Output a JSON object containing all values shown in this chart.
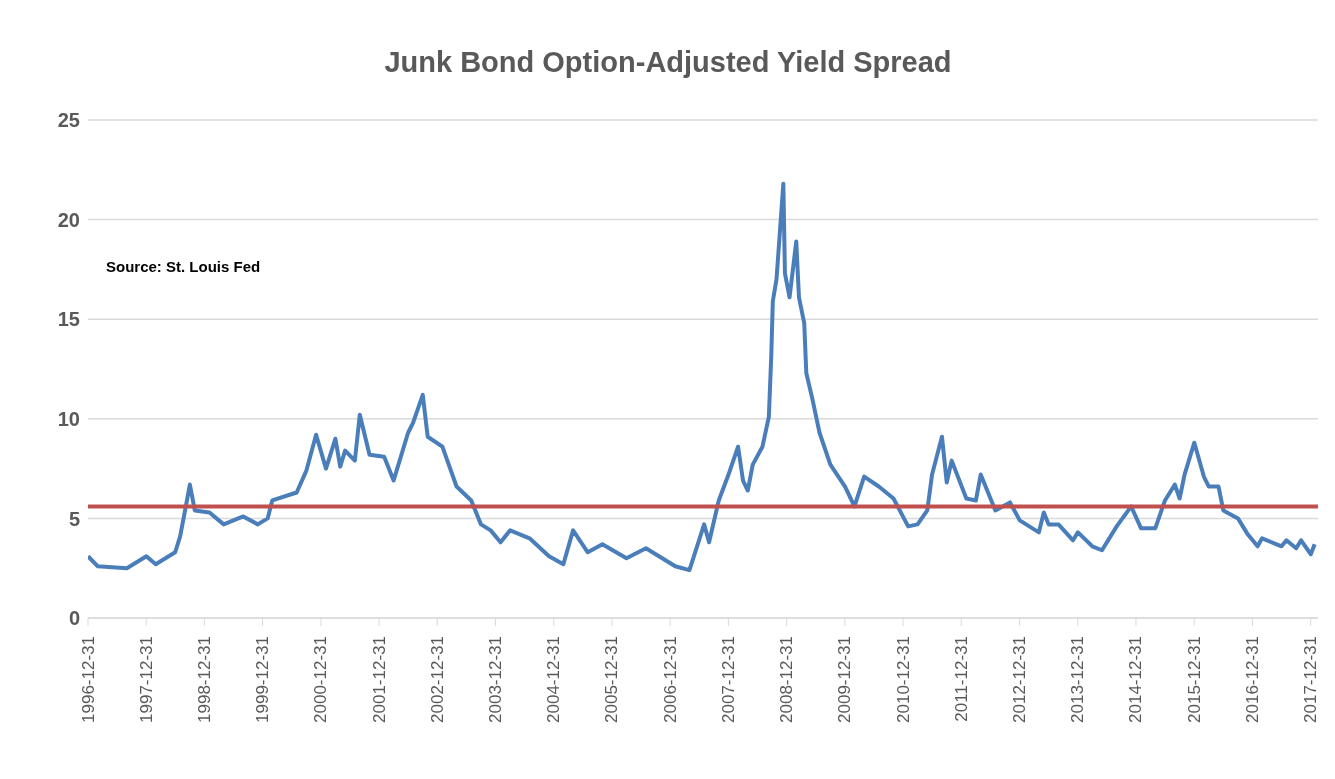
{
  "chart_data": {
    "type": "line",
    "title": "Junk Bond Option-Adjusted Yield Spread",
    "annotations": [
      "Source: St. Louis Fed"
    ],
    "x": [
      "1996-12-31",
      "1997-03",
      "1997-09",
      "1998-01",
      "1998-03",
      "1998-07",
      "1998-08",
      "1998-09",
      "1998-10",
      "1998-11",
      "1999-02",
      "1999-05",
      "1999-09",
      "1999-12",
      "2000-02",
      "2000-03",
      "2000-08",
      "2000-10",
      "2000-12",
      "2001-02",
      "2001-04",
      "2001-05",
      "2001-06",
      "2001-08",
      "2001-09",
      "2001-11",
      "2002-02",
      "2002-04",
      "2002-07",
      "2002-08",
      "2002-10",
      "2002-11",
      "2003-02",
      "2003-05",
      "2003-08",
      "2003-10",
      "2003-12",
      "2004-02",
      "2004-04",
      "2004-08",
      "2004-12",
      "2005-03",
      "2005-05",
      "2005-08",
      "2005-11",
      "2006-04",
      "2006-08",
      "2007-02",
      "2007-05",
      "2007-08",
      "2007-09",
      "2007-11",
      "2008-01",
      "2008-03",
      "2008-04",
      "2008-05",
      "2008-06",
      "2008-08",
      "2008-09-10",
      "2008-09-25",
      "2008-10-05",
      "2008-10-28",
      "2008-12-10",
      "2008-12-20",
      "2009-01-18",
      "2009-03-01",
      "2009-03-18",
      "2009-04-20",
      "2009-05-03",
      "2009-06-10",
      "2009-07-25",
      "2009-10",
      "2010-01",
      "2010-03",
      "2010-05",
      "2010-08",
      "2010-11",
      "2011-02",
      "2011-04",
      "2011-06",
      "2011-07",
      "2011-09",
      "2011-10",
      "2011-11",
      "2012-02",
      "2012-04",
      "2012-05",
      "2012-08",
      "2012-11",
      "2013-01",
      "2013-05",
      "2013-06",
      "2013-07",
      "2013-09",
      "2013-12",
      "2014-01",
      "2014-04",
      "2014-06",
      "2014-09",
      "2014-12",
      "2015-02",
      "2015-05",
      "2015-07",
      "2015-09",
      "2015-10",
      "2015-11",
      "2016-01",
      "2016-03",
      "2016-04",
      "2016-06",
      "2016-07",
      "2016-10",
      "2016-12",
      "2017-02",
      "2017-03",
      "2017-07",
      "2017-08",
      "2017-10",
      "2017-11",
      "2018-01",
      "2018-01-25"
    ],
    "values": [
      3.1,
      2.6,
      2.5,
      3.1,
      2.7,
      3.3,
      4.1,
      5.4,
      6.7,
      5.4,
      5.3,
      4.7,
      5.1,
      4.7,
      5.0,
      5.9,
      6.3,
      7.4,
      9.2,
      7.5,
      9.0,
      7.6,
      8.4,
      7.9,
      10.2,
      8.2,
      8.1,
      6.9,
      9.3,
      9.8,
      11.2,
      9.1,
      8.6,
      6.6,
      5.9,
      4.7,
      4.4,
      3.8,
      4.4,
      4.0,
      3.1,
      2.7,
      4.4,
      3.3,
      3.7,
      3.0,
      3.5,
      2.6,
      2.4,
      4.7,
      3.8,
      5.9,
      7.2,
      8.6,
      6.9,
      6.4,
      7.7,
      8.6,
      10.1,
      13.1,
      15.9,
      17.0,
      21.8,
      17.3,
      16.1,
      18.9,
      16.1,
      14.8,
      12.3,
      11.0,
      9.3,
      7.7,
      6.6,
      5.6,
      7.1,
      6.6,
      6.0,
      4.6,
      4.7,
      5.4,
      7.2,
      9.1,
      6.8,
      7.9,
      6.0,
      5.9,
      7.2,
      5.4,
      5.8,
      4.9,
      4.3,
      5.3,
      4.7,
      4.7,
      3.9,
      4.3,
      3.6,
      3.4,
      4.6,
      5.6,
      4.5,
      4.5,
      5.9,
      6.7,
      6.0,
      7.2,
      8.8,
      7.1,
      6.6,
      6.6,
      5.4,
      5.0,
      4.2,
      3.6,
      4.0,
      3.6,
      3.9,
      3.5,
      3.9,
      3.2,
      3.7
    ],
    "color": "#4a7ebb",
    "xlim": [
      "1996-12-31",
      "2018-02-15"
    ],
    "xticks": [
      "1996-12-31",
      "1997-12-31",
      "1998-12-31",
      "1999-12-31",
      "2000-12-31",
      "2001-12-31",
      "2002-12-31",
      "2003-12-31",
      "2004-12-31",
      "2005-12-31",
      "2006-12-31",
      "2007-12-31",
      "2008-12-31",
      "2009-12-31",
      "2010-12-31",
      "2011-12-31",
      "2012-12-31",
      "2013-12-31",
      "2014-12-31",
      "2015-12-31",
      "2016-12-31",
      "2017-12-31"
    ],
    "ylim": [
      0,
      25
    ],
    "yticks": [
      0,
      5,
      10,
      15,
      20,
      25
    ],
    "grid": "y",
    "ref_lines": [
      {
        "axis": "y",
        "value": 5.6,
        "color": "#c0504d"
      }
    ]
  }
}
